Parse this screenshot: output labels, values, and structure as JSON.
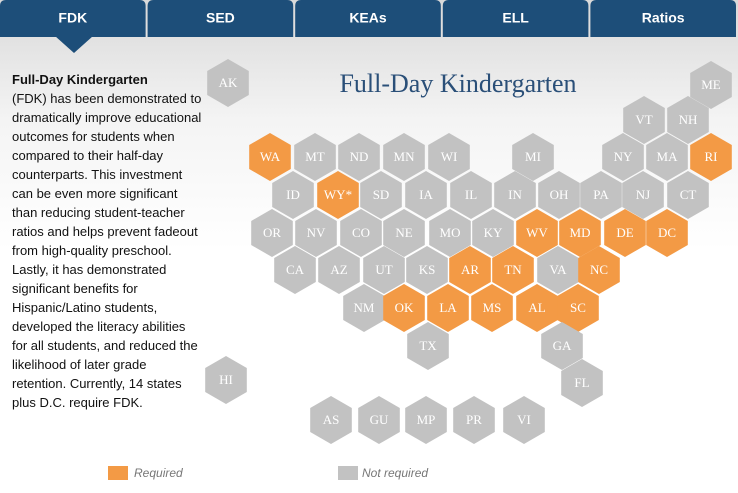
{
  "tabs": [
    "FDK",
    "SED",
    "KEAs",
    "ELL",
    "Ratios"
  ],
  "description": {
    "title": "Full-Day Kindergarten",
    "body": "(FDK) has been demonstrated to dramatically improve educational outcomes for students when compared to their half-day counterparts. This investment can be even more significant than reducing student-teacher ratios and helps prevent fadeout from high-quality preschool. Lastly, it has demonstrated significant benefits for Hispanic/Latino students, developed the literacy abilities for all students, and reduced the likelihood of later grade retention. Currently, 14 states plus D.C. require FDK."
  },
  "map": {
    "title": "Full-Day Kindergarten",
    "legend": [
      {
        "label": "Required",
        "color": "#f39a45"
      },
      {
        "label": "Not required",
        "color": "#c2c2c2"
      }
    ],
    "hexes": [
      {
        "label": "AK",
        "required": false
      },
      {
        "label": "ME",
        "required": false
      },
      {
        "label": "VT",
        "required": false
      },
      {
        "label": "NH",
        "required": false
      },
      {
        "label": "WA",
        "required": true
      },
      {
        "label": "MT",
        "required": false
      },
      {
        "label": "ND",
        "required": false
      },
      {
        "label": "MN",
        "required": false
      },
      {
        "label": "WI",
        "required": false
      },
      {
        "label": "MI",
        "required": false
      },
      {
        "label": "NY",
        "required": false
      },
      {
        "label": "MA",
        "required": false
      },
      {
        "label": "RI",
        "required": true
      },
      {
        "label": "ID",
        "required": false
      },
      {
        "label": "WY*",
        "required": true
      },
      {
        "label": "SD",
        "required": false
      },
      {
        "label": "IA",
        "required": false
      },
      {
        "label": "IL",
        "required": false
      },
      {
        "label": "IN",
        "required": false
      },
      {
        "label": "OH",
        "required": false
      },
      {
        "label": "PA",
        "required": false
      },
      {
        "label": "NJ",
        "required": false
      },
      {
        "label": "CT",
        "required": false
      },
      {
        "label": "OR",
        "required": false
      },
      {
        "label": "NV",
        "required": false
      },
      {
        "label": "CO",
        "required": false
      },
      {
        "label": "NE",
        "required": false
      },
      {
        "label": "MO",
        "required": false
      },
      {
        "label": "KY",
        "required": false
      },
      {
        "label": "WV",
        "required": true
      },
      {
        "label": "MD",
        "required": true
      },
      {
        "label": "DE",
        "required": true
      },
      {
        "label": "DC",
        "required": true
      },
      {
        "label": "CA",
        "required": false
      },
      {
        "label": "AZ",
        "required": false
      },
      {
        "label": "UT",
        "required": false
      },
      {
        "label": "KS",
        "required": false
      },
      {
        "label": "AR",
        "required": true
      },
      {
        "label": "TN",
        "required": true
      },
      {
        "label": "VA",
        "required": false
      },
      {
        "label": "NC",
        "required": true
      },
      {
        "label": "NM",
        "required": false
      },
      {
        "label": "OK",
        "required": true
      },
      {
        "label": "LA",
        "required": true
      },
      {
        "label": "MS",
        "required": true
      },
      {
        "label": "AL",
        "required": true
      },
      {
        "label": "SC",
        "required": true
      },
      {
        "label": "TX",
        "required": false
      },
      {
        "label": "GA",
        "required": false
      },
      {
        "label": "FL",
        "required": false
      },
      {
        "label": "HI",
        "required": false
      },
      {
        "label": "AS",
        "required": false
      },
      {
        "label": "GU",
        "required": false
      },
      {
        "label": "MP",
        "required": false
      },
      {
        "label": "PR",
        "required": false
      },
      {
        "label": "VI",
        "required": false
      }
    ]
  }
}
